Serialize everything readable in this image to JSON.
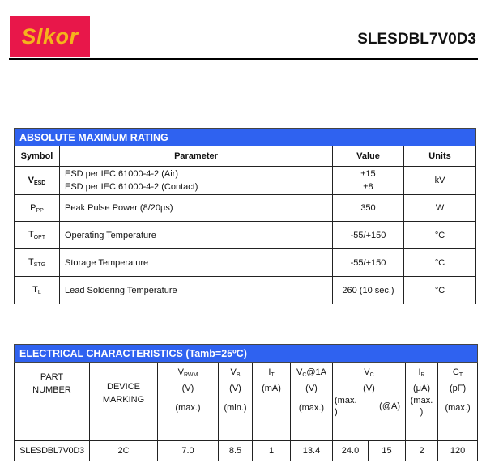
{
  "header": {
    "logo_text": "Slkor",
    "part_number": "SLESDBL7V0D3"
  },
  "abs_max": {
    "title": "ABSOLUTE MAXIMUM RATING",
    "columns": [
      "Symbol",
      "Parameter",
      "Value",
      "Units"
    ],
    "rows": [
      {
        "sym": "V",
        "sub": "ESD",
        "params": [
          "ESD per IEC 61000-4-2 (Air)",
          "ESD per IEC 61000-4-2 (Contact)"
        ],
        "values": [
          "±15",
          "±8"
        ],
        "unit": "kV"
      },
      {
        "sym": "P",
        "sub": "PP",
        "param": "Peak Pulse Power (8/20μs)",
        "value": "350",
        "unit": "W"
      },
      {
        "sym": "T",
        "sub": "OPT",
        "param": "Operating Temperature",
        "value": "-55/+150",
        "unit": "°C"
      },
      {
        "sym": "T",
        "sub": "STG",
        "param": "Storage Temperature",
        "value": "-55/+150",
        "unit": "°C"
      },
      {
        "sym": "T",
        "sub": "L",
        "param": "Lead Soldering Temperature",
        "value": "260 (10 sec.)",
        "unit": "°C"
      }
    ]
  },
  "elec": {
    "title": "ELECTRICAL CHARACTERISTICS (Tamb=25ºC)",
    "headers": {
      "part": [
        "PART",
        "NUMBER"
      ],
      "marking": [
        "DEVICE",
        "MARKING"
      ],
      "vrwm": {
        "sym": "V",
        "sub": "RWM",
        "unit": "(V)",
        "cond": "(max.)"
      },
      "vb": {
        "sym": "V",
        "sub": "B",
        "unit": "(V)",
        "cond": "(min.)"
      },
      "it": {
        "sym": "I",
        "sub": "T",
        "unit": "(mA)"
      },
      "vc1a": {
        "sym": "V",
        "sub": "C",
        "suffix": "@1A",
        "unit": "(V)",
        "cond": "(max.)"
      },
      "vc": {
        "sym": "V",
        "sub": "C",
        "unit": "(V)",
        "cond_a": "(max.",
        "cond_a2": ")",
        "cond_b": "(@A)"
      },
      "ir": {
        "sym": "I",
        "sub": "R",
        "unit": "(μA)",
        "cond_a": "(max.",
        "cond_a2": ")"
      },
      "ct": {
        "sym": "C",
        "sub": "T",
        "unit": "(pF)",
        "cond": "(max.)"
      }
    },
    "row": {
      "part": "SLESDBL7V0D3",
      "marking": "2C",
      "vrwm": "7.0",
      "vb": "8.5",
      "it": "1",
      "vc1a": "13.4",
      "vc": "24.0",
      "vc_a": "15",
      "ir": "2",
      "ct": "120"
    }
  },
  "colors": {
    "band": "#2f62f0",
    "logo_bg": "#e8174a",
    "logo_text": "#f5b21c"
  }
}
